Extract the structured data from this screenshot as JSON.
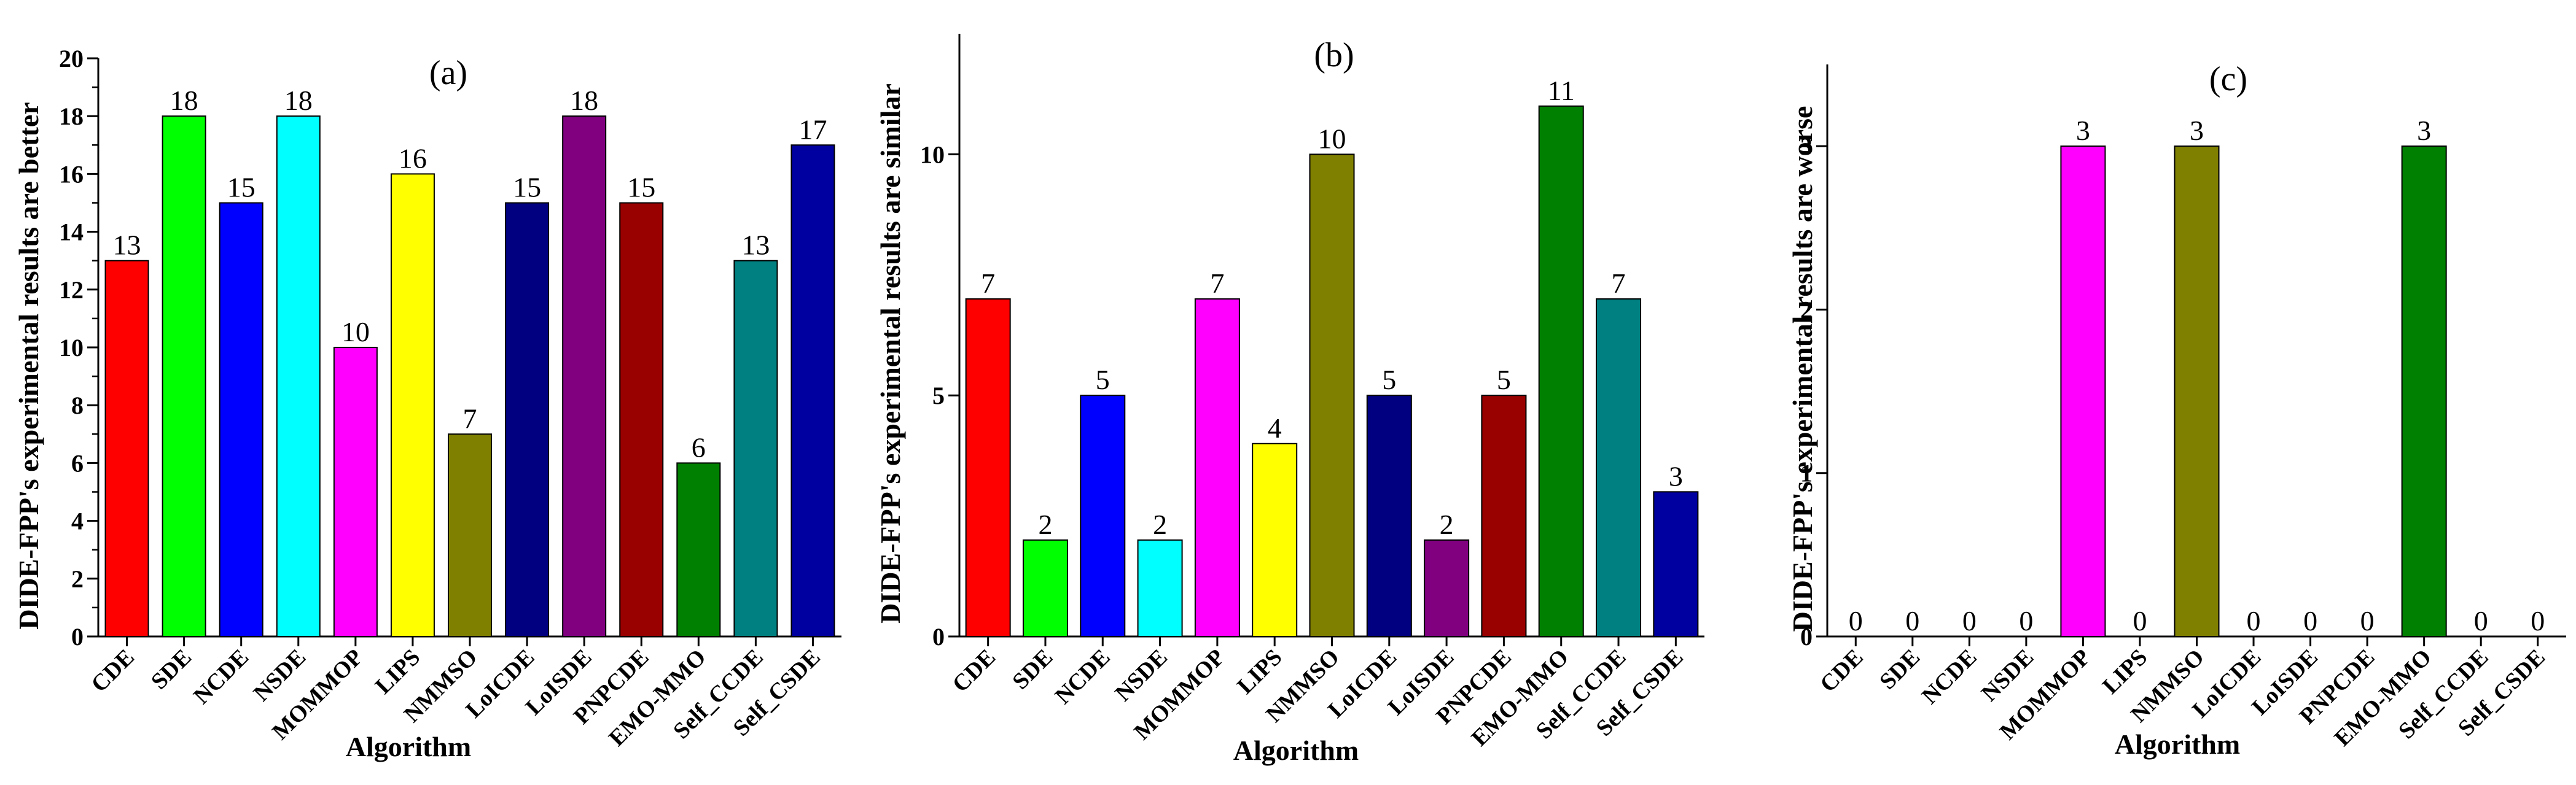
{
  "chart_data": [
    {
      "type": "bar",
      "panel_label": "(a)",
      "xlabel": "Algorithm",
      "ylabel": "DIDE-FPP's experimental results are better",
      "categories": [
        "CDE",
        "SDE",
        "NCDE",
        "NSDE",
        "MOMMOP",
        "LIPS",
        "NMMSO",
        "LoICDE",
        "LoISDE",
        "PNPCDE",
        "EMO-MMO",
        "Self_CCDE",
        "Self_CSDE"
      ],
      "values": [
        13,
        18,
        15,
        18,
        10,
        16,
        7,
        15,
        18,
        15,
        6,
        13,
        17
      ],
      "value_labels": [
        "13",
        "18",
        "15",
        "18",
        "10",
        "16",
        "7",
        "15",
        "18",
        "15",
        "6",
        "13",
        "17"
      ],
      "ylim": [
        0,
        20
      ],
      "yticks": [
        0,
        2,
        4,
        6,
        8,
        10,
        12,
        14,
        16,
        18,
        20
      ],
      "ytick_labels": [
        "0",
        "2",
        "4",
        "6",
        "8",
        "10",
        "12",
        "14",
        "16",
        "18",
        "20"
      ]
    },
    {
      "type": "bar",
      "panel_label": "(b)",
      "xlabel": "Algorithm",
      "ylabel": "DIDE-FPP's experimental results are similar",
      "categories": [
        "CDE",
        "SDE",
        "NCDE",
        "NSDE",
        "MOMMOP",
        "LIPS",
        "NMMSO",
        "LoICDE",
        "LoISDE",
        "PNPCDE",
        "EMO-MMO",
        "Self_CCDE",
        "Self_CSDE"
      ],
      "values": [
        7,
        2,
        5,
        2,
        7,
        4,
        10,
        5,
        2,
        5,
        11,
        7,
        3
      ],
      "value_labels": [
        "7",
        "2",
        "5",
        "2",
        "7",
        "4",
        "10",
        "5",
        "2",
        "5",
        "11",
        "7",
        "3"
      ],
      "ylim": [
        0,
        12.5
      ],
      "yticks": [
        0,
        5,
        10
      ],
      "ytick_labels": [
        "0",
        "5",
        "10"
      ]
    },
    {
      "type": "bar",
      "panel_label": "(c)",
      "xlabel": "Algorithm",
      "ylabel": "DIDE-FPP's experimental results are worse",
      "categories": [
        "CDE",
        "SDE",
        "NCDE",
        "NSDE",
        "MOMMOP",
        "LIPS",
        "NMMSO",
        "LoICDE",
        "LoISDE",
        "PNPCDE",
        "EMO-MMO",
        "Self_CCDE",
        "Self_CSDE"
      ],
      "values": [
        0,
        0,
        0,
        0,
        3,
        0,
        3,
        0,
        0,
        0,
        3,
        0,
        0
      ],
      "value_labels": [
        "0",
        "0",
        "0",
        "0",
        "3",
        "0",
        "3",
        "0",
        "0",
        "0",
        "3",
        "0",
        "0"
      ],
      "ylim": [
        0,
        3.5
      ],
      "yticks": [
        0,
        1,
        2,
        3
      ],
      "ytick_labels": [
        "0",
        "1",
        "2",
        "3"
      ]
    }
  ],
  "colors": {
    "CDE": "#ff0000",
    "SDE": "#00ff00",
    "NCDE": "#0000ff",
    "NSDE": "#00ffff",
    "MOMMOP": "#ff00ff",
    "LIPS": "#ffff00",
    "NMMSO": "#808000",
    "LoICDE": "#000080",
    "LoISDE": "#800080",
    "PNPCDE": "#990000",
    "EMO-MMO": "#008000",
    "Self_CCDE": "#008080",
    "Self_CSDE": "#0000a0"
  }
}
